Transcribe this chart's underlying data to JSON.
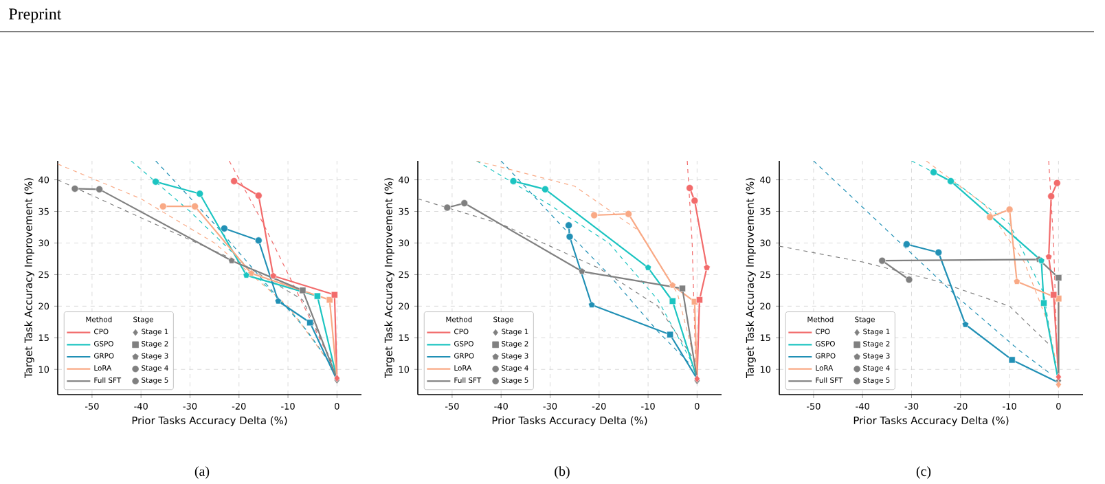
{
  "chart_data": [
    {
      "type": "line",
      "title": "(a)",
      "annotations": [
        "Preprint"
      ],
      "xlabel": "Prior Tasks Accuracy Delta (%)",
      "ylabel": "Target Task Accuracy Improvement (%)",
      "xlim": [
        -57,
        5
      ],
      "ylim": [
        6,
        43
      ],
      "xticks": [
        -50,
        -40,
        -30,
        -20,
        -10,
        0
      ],
      "yticks": [
        10,
        15,
        20,
        25,
        30,
        35,
        40
      ],
      "grid": true,
      "legend": "bottom left",
      "legend_title": [
        "Method",
        "Stage"
      ],
      "series": [
        {
          "type": "line",
          "line_style": "dashed",
          "color": "#f26b6b",
          "x": [
            -22,
            -15,
            -8,
            -3,
            -0.5
          ],
          "values": [
            43,
            33,
            22,
            14,
            10.5
          ]
        },
        {
          "type": "line",
          "line_style": "dashed",
          "color": "#1cc4c1",
          "x": [
            -42,
            -30,
            -18,
            -8,
            -1
          ],
          "values": [
            43,
            35,
            26,
            18,
            10.5
          ]
        },
        {
          "type": "line",
          "line_style": "dashed",
          "color": "#2190b5",
          "x": [
            -37,
            -25,
            -15,
            -6,
            -1
          ],
          "values": [
            43,
            33,
            24,
            16,
            10.5
          ]
        },
        {
          "type": "line",
          "line_style": "dashed",
          "color": "#f9a985",
          "x": [
            -57,
            -40,
            -25,
            -10,
            -1
          ],
          "values": [
            42.5,
            37,
            30,
            20,
            10.5
          ]
        },
        {
          "type": "line",
          "line_style": "dashed",
          "color": "#808080",
          "x": [
            -57,
            -40,
            -20,
            -7,
            -1
          ],
          "values": [
            40,
            34,
            27,
            21,
            11
          ]
        },
        {
          "type": "line",
          "name": "CPO",
          "color": "#f26b6b",
          "x": [
            0,
            -0.5,
            -13,
            -16,
            -21
          ],
          "values": [
            8.6,
            21.8,
            24.8,
            37.5,
            39.8
          ]
        },
        {
          "type": "line",
          "name": "GSPO",
          "color": "#1cc4c1",
          "x": [
            0,
            -4,
            -18.5,
            -28,
            -37
          ],
          "values": [
            8.5,
            21.6,
            24.9,
            37.8,
            39.7
          ]
        },
        {
          "type": "line",
          "name": "GRPO",
          "color": "#2190b5",
          "x": [
            0,
            -5.5,
            -12,
            -16,
            -23
          ],
          "values": [
            8.3,
            17.4,
            20.8,
            30.4,
            32.3
          ]
        },
        {
          "type": "line",
          "name": "LoRA",
          "color": "#f9a985",
          "x": [
            0,
            -1.5,
            -17.5,
            -29,
            -35.5
          ],
          "values": [
            8.5,
            21.0,
            25.2,
            35.8,
            35.8
          ]
        },
        {
          "type": "line",
          "name": "Full SFT",
          "color": "#808080",
          "x": [
            0,
            -7,
            -21.5,
            -48.5,
            -53.5
          ],
          "values": [
            8.5,
            22.5,
            27.2,
            38.5,
            38.6
          ]
        },
        {
          "type": "scatter",
          "name": "Stage 1",
          "marker": "diamond",
          "color": "#808080",
          "x": [
            0,
            null,
            null,
            null,
            0
          ],
          "values": [
            8.6,
            null,
            null,
            null,
            8.3
          ],
          "colors": [
            "#f26b6b",
            "#1cc4c1",
            "#2190b5",
            "#f9a985",
            "#808080"
          ]
        },
        {
          "type": "scatter",
          "name": "Stage 2",
          "marker": "square",
          "color": "#808080",
          "x": [
            -0.5,
            -4,
            -5.5,
            -1.5,
            -7
          ],
          "values": [
            21.8,
            21.6,
            17.4,
            21.0,
            22.5
          ],
          "colors": [
            "#f26b6b",
            "#1cc4c1",
            "#2190b5",
            "#f9a985",
            "#808080"
          ]
        },
        {
          "type": "scatter",
          "name": "Stage 3",
          "color": "#808080",
          "x": [
            -13,
            -18.5,
            -12,
            -17.5,
            -21.5
          ],
          "values": [
            24.8,
            24.9,
            20.8,
            25.2,
            27.2
          ],
          "colors": [
            "#f26b6b",
            "#1cc4c1",
            "#2190b5",
            "#f9a985",
            "#808080"
          ]
        },
        {
          "type": "scatter",
          "name": "Stage 4",
          "marker": "circle",
          "color": "#808080",
          "x": [
            -16,
            -28,
            -16,
            -29,
            -48.5
          ],
          "values": [
            37.5,
            37.8,
            30.4,
            35.8,
            38.5
          ],
          "colors": [
            "#f26b6b",
            "#1cc4c1",
            "#2190b5",
            "#f9a985",
            "#808080"
          ]
        },
        {
          "type": "scatter",
          "name": "Stage 5",
          "marker": "circle",
          "color": "#808080",
          "x": [
            -21,
            -37,
            -23,
            -35.5,
            -53.5
          ],
          "values": [
            39.8,
            39.7,
            32.3,
            35.8,
            38.6
          ],
          "colors": [
            "#f26b6b",
            "#1cc4c1",
            "#2190b5",
            "#f9a985",
            "#808080"
          ]
        }
      ]
    },
    {
      "type": "line",
      "title": "(b)",
      "xlabel": "Prior Tasks Accuracy Delta (%)",
      "ylabel": "Target Task Accuracy Improvement (%)",
      "xlim": [
        -57,
        5
      ],
      "ylim": [
        6,
        43
      ],
      "xticks": [
        -50,
        -40,
        -30,
        -20,
        -10,
        0
      ],
      "yticks": [
        10,
        15,
        20,
        25,
        30,
        35,
        40
      ],
      "grid": true,
      "legend": "bottom left",
      "legend_title": [
        "Method",
        "Stage"
      ],
      "series": [
        {
          "type": "line",
          "line_style": "dashed",
          "color": "#f26b6b",
          "x": [
            -2,
            -1,
            -0.3
          ],
          "values": [
            43,
            30,
            11
          ]
        },
        {
          "type": "line",
          "line_style": "dashed",
          "color": "#1cc4c1",
          "x": [
            -45,
            -30,
            -18,
            -8,
            -1
          ],
          "values": [
            43,
            36,
            30,
            21,
            11
          ]
        },
        {
          "type": "line",
          "line_style": "dashed",
          "color": "#2190b5",
          "x": [
            -40,
            -28,
            -18,
            -8,
            -1
          ],
          "values": [
            43,
            33,
            25,
            16,
            10.5
          ]
        },
        {
          "type": "line",
          "line_style": "dashed",
          "color": "#f9a985",
          "x": [
            -45,
            -25,
            -12,
            -4,
            -0.5
          ],
          "values": [
            43,
            39,
            32,
            22,
            11.5
          ]
        },
        {
          "type": "line",
          "line_style": "dashed",
          "color": "#808080",
          "x": [
            -57,
            -40,
            -20,
            -8,
            -1
          ],
          "values": [
            37,
            33,
            26,
            20,
            12
          ]
        },
        {
          "type": "line",
          "name": "CPO",
          "color": "#f26b6b",
          "x": [
            0,
            0.5,
            2,
            -0.5,
            -1.5
          ],
          "values": [
            8.5,
            21,
            26.1,
            36.7,
            38.7
          ]
        },
        {
          "type": "line",
          "name": "GSPO",
          "color": "#1cc4c1",
          "x": [
            0,
            -5,
            -10,
            -31,
            -37.5
          ],
          "values": [
            8.5,
            20.8,
            26.1,
            38.5,
            39.8
          ]
        },
        {
          "type": "line",
          "name": "GRPO",
          "color": "#2190b5",
          "x": [
            0,
            -5.5,
            -21.5,
            -26,
            -26.2
          ],
          "values": [
            8.5,
            15.5,
            20.2,
            31,
            32.8
          ]
        },
        {
          "type": "line",
          "name": "LoRA",
          "color": "#f9a985",
          "x": [
            0,
            -0.5,
            -5,
            -14,
            -21
          ],
          "values": [
            8.5,
            20.7,
            23.3,
            34.6,
            34.4
          ]
        },
        {
          "type": "line",
          "name": "Full SFT",
          "color": "#808080",
          "x": [
            0,
            -3,
            -23.5,
            -47.5,
            -51
          ],
          "values": [
            8.5,
            22.8,
            25.5,
            36.3,
            35.6
          ]
        },
        {
          "type": "scatter",
          "name": "Stage 1",
          "marker": "diamond",
          "color": "#808080",
          "x": [
            0,
            null,
            null,
            null,
            0
          ],
          "values": [
            8.5,
            null,
            null,
            null,
            8.2
          ],
          "colors": [
            "#f26b6b",
            "#1cc4c1",
            "#2190b5",
            "#f9a985",
            "#808080"
          ]
        },
        {
          "type": "scatter",
          "name": "Stage 2",
          "marker": "square",
          "color": "#808080",
          "x": [
            0.5,
            -5,
            -5.5,
            -0.5,
            -3
          ],
          "values": [
            21,
            20.8,
            15.5,
            20.7,
            22.8
          ],
          "colors": [
            "#f26b6b",
            "#1cc4c1",
            "#2190b5",
            "#f9a985",
            "#808080"
          ]
        },
        {
          "type": "scatter",
          "name": "Stage 3",
          "color": "#808080",
          "x": [
            2,
            -10,
            -21.5,
            -5,
            -23.5
          ],
          "values": [
            26.1,
            26.1,
            20.2,
            23.3,
            25.5
          ],
          "colors": [
            "#f26b6b",
            "#1cc4c1",
            "#2190b5",
            "#f9a985",
            "#808080"
          ]
        },
        {
          "type": "scatter",
          "name": "Stage 4",
          "marker": "circle",
          "color": "#808080",
          "x": [
            -0.5,
            -31,
            -26,
            -14,
            -47.5
          ],
          "values": [
            36.7,
            38.5,
            31,
            34.6,
            36.3
          ],
          "colors": [
            "#f26b6b",
            "#1cc4c1",
            "#2190b5",
            "#f9a985",
            "#808080"
          ]
        },
        {
          "type": "scatter",
          "name": "Stage 5",
          "marker": "circle",
          "color": "#808080",
          "x": [
            -1.5,
            -37.5,
            -26.2,
            -21,
            -51
          ],
          "values": [
            38.7,
            39.8,
            32.8,
            34.4,
            35.6
          ],
          "colors": [
            "#f26b6b",
            "#1cc4c1",
            "#2190b5",
            "#f9a985",
            "#808080"
          ]
        }
      ]
    },
    {
      "type": "line",
      "title": "(c)",
      "xlabel": "Prior Tasks Accuracy Delta (%)",
      "ylabel": "Target Task Accuracy Improvement (%)",
      "xlim": [
        -57,
        5
      ],
      "ylim": [
        6,
        43
      ],
      "xticks": [
        -50,
        -40,
        -30,
        -20,
        -10,
        0
      ],
      "yticks": [
        10,
        15,
        20,
        25,
        30,
        35,
        40
      ],
      "grid": true,
      "legend": "bottom left",
      "legend_title": [
        "Method",
        "Stage"
      ],
      "series": [
        {
          "type": "line",
          "line_style": "dashed",
          "color": "#f26b6b",
          "x": [
            -2,
            -1,
            -0.3
          ],
          "values": [
            43,
            30,
            12
          ]
        },
        {
          "type": "line",
          "line_style": "dashed",
          "color": "#1cc4c1",
          "x": [
            -30,
            -20,
            -10,
            -3,
            -1
          ],
          "values": [
            43,
            39,
            33,
            22,
            12
          ]
        },
        {
          "type": "line",
          "line_style": "dashed",
          "color": "#2190b5",
          "x": [
            -50,
            -35,
            -20,
            -8,
            -2
          ],
          "values": [
            43,
            32,
            21,
            13,
            9.5
          ]
        },
        {
          "type": "line",
          "line_style": "dashed",
          "color": "#f9a985",
          "x": [
            -27,
            -15,
            -7,
            -2,
            -0.5
          ],
          "values": [
            43,
            36,
            27,
            17,
            11
          ]
        },
        {
          "type": "line",
          "line_style": "dashed",
          "color": "#808080",
          "x": [
            -57,
            -40,
            -25,
            -10,
            -2
          ],
          "values": [
            29.5,
            27,
            24,
            20,
            14
          ]
        },
        {
          "type": "line",
          "name": "CPO",
          "color": "#f26b6b",
          "x": [
            0,
            -1,
            -2,
            -1.5,
            -0.3
          ],
          "values": [
            8.8,
            21.8,
            27.8,
            37.4,
            39.5
          ]
        },
        {
          "type": "line",
          "name": "GSPO",
          "color": "#1cc4c1",
          "x": [
            0,
            -3,
            -3.5,
            -22,
            -25.5
          ],
          "values": [
            8.0,
            20.5,
            27.2,
            39.8,
            41.2
          ]
        },
        {
          "type": "line",
          "name": "GRPO",
          "color": "#2190b5",
          "x": [
            0,
            -9.5,
            -19,
            -24.5,
            -31
          ],
          "values": [
            7.9,
            11.5,
            17.1,
            28.5,
            29.8
          ]
        },
        {
          "type": "line",
          "name": "LoRA",
          "color": "#f9a985",
          "x": [
            0,
            0,
            -8.5,
            -10,
            -14
          ],
          "values": [
            7.6,
            21.2,
            23.9,
            35.3,
            34.1
          ]
        },
        {
          "type": "line",
          "name": "Full SFT",
          "color": "#808080",
          "x": [
            0,
            0,
            -4,
            -36,
            -30.5
          ],
          "values": [
            7.6,
            24.5,
            27.4,
            27.2,
            24.2
          ]
        },
        {
          "type": "scatter",
          "name": "Stage 1",
          "marker": "diamond",
          "color": "#808080",
          "x": [
            0,
            null,
            null,
            0,
            0
          ],
          "values": [
            8.8,
            null,
            null,
            7.6,
            8.2
          ],
          "colors": [
            "#f26b6b",
            "#1cc4c1",
            "#2190b5",
            "#f9a985",
            "#808080"
          ]
        },
        {
          "type": "scatter",
          "name": "Stage 2",
          "marker": "square",
          "color": "#808080",
          "x": [
            -1,
            -3,
            -9.5,
            0,
            0
          ],
          "values": [
            21.8,
            20.5,
            11.5,
            21.2,
            24.5
          ],
          "colors": [
            "#f26b6b",
            "#1cc4c1",
            "#2190b5",
            "#f9a985",
            "#808080"
          ]
        },
        {
          "type": "scatter",
          "name": "Stage 3",
          "color": "#808080",
          "x": [
            -2,
            -3.5,
            -19,
            -8.5,
            -4
          ],
          "values": [
            27.8,
            27.2,
            17.1,
            23.9,
            27.4
          ],
          "colors": [
            "#f26b6b",
            "#1cc4c1",
            "#2190b5",
            "#f9a985",
            "#808080"
          ]
        },
        {
          "type": "scatter",
          "name": "Stage 4",
          "marker": "circle",
          "color": "#808080",
          "x": [
            -1.5,
            -22,
            -24.5,
            -10,
            -36
          ],
          "values": [
            37.4,
            39.8,
            28.5,
            35.3,
            27.2
          ],
          "colors": [
            "#f26b6b",
            "#1cc4c1",
            "#2190b5",
            "#f9a985",
            "#808080"
          ]
        },
        {
          "type": "scatter",
          "name": "Stage 5",
          "marker": "circle",
          "color": "#808080",
          "x": [
            -0.3,
            -25.5,
            -31,
            -14,
            -30.5
          ],
          "values": [
            39.5,
            41.2,
            29.8,
            34.1,
            24.2
          ],
          "colors": [
            "#f26b6b",
            "#1cc4c1",
            "#2190b5",
            "#f9a985",
            "#808080"
          ]
        }
      ]
    }
  ]
}
